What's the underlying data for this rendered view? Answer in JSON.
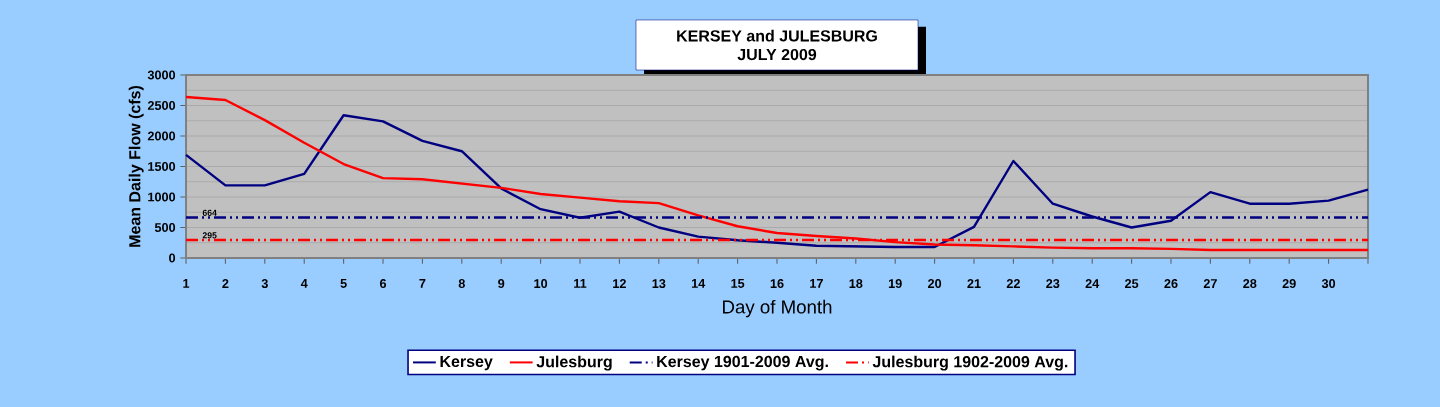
{
  "chart_data": {
    "type": "line",
    "title": "KERSEY and JULESBURG",
    "subtitle": "JULY 2009",
    "xlabel": "Day of Month",
    "ylabel": "Mean Daily Flow (cfs)",
    "x": [
      1,
      2,
      3,
      4,
      5,
      6,
      7,
      8,
      9,
      10,
      11,
      12,
      13,
      14,
      15,
      16,
      17,
      18,
      19,
      20,
      21,
      22,
      23,
      24,
      25,
      26,
      27,
      28,
      29,
      30,
      31
    ],
    "series": [
      {
        "name": "Kersey",
        "color": "#000080",
        "values": [
          1690,
          1190,
          1190,
          1380,
          2340,
          2240,
          1920,
          1750,
          1140,
          800,
          660,
          760,
          500,
          350,
          290,
          250,
          200,
          190,
          180,
          180,
          510,
          1590,
          890,
          680,
          500,
          610,
          1080,
          890,
          890,
          940,
          1120
        ]
      },
      {
        "name": "Julesburg",
        "color": "#ff0000",
        "values": [
          2640,
          2590,
          2260,
          1890,
          1540,
          1310,
          1290,
          1220,
          1150,
          1050,
          990,
          930,
          900,
          700,
          520,
          410,
          360,
          320,
          260,
          220,
          210,
          190,
          170,
          160,
          160,
          150,
          130,
          130,
          130,
          130,
          130
        ]
      }
    ],
    "ref_lines": [
      {
        "axis": "y",
        "value": 664,
        "label": "Kersey 1901-2009 Avg.",
        "color": "#000080",
        "line_style": "dashdotdot"
      },
      {
        "axis": "y",
        "value": 295,
        "label": "Julesburg 1902-2009 Avg.",
        "color": "#ff0000",
        "line_style": "dashdotdot"
      }
    ],
    "annotations": [
      {
        "text": "664",
        "x": 1.6,
        "y": 664
      },
      {
        "text": "295",
        "x": 1.6,
        "y": 295
      }
    ],
    "xlim": [
      1,
      31
    ],
    "xticks": [
      1,
      2,
      3,
      4,
      5,
      6,
      7,
      8,
      9,
      10,
      11,
      12,
      13,
      14,
      15,
      16,
      17,
      18,
      19,
      20,
      21,
      22,
      23,
      24,
      25,
      26,
      27,
      28,
      29,
      30,
      {
        "value": 31,
        "label": null
      }
    ],
    "ylim": [
      0,
      3000
    ],
    "yticks": [
      0,
      500,
      1000,
      1500,
      2000,
      2500,
      3000
    ],
    "grid": "y",
    "legend": "bottom",
    "marker": "none",
    "line_style": "solid"
  }
}
